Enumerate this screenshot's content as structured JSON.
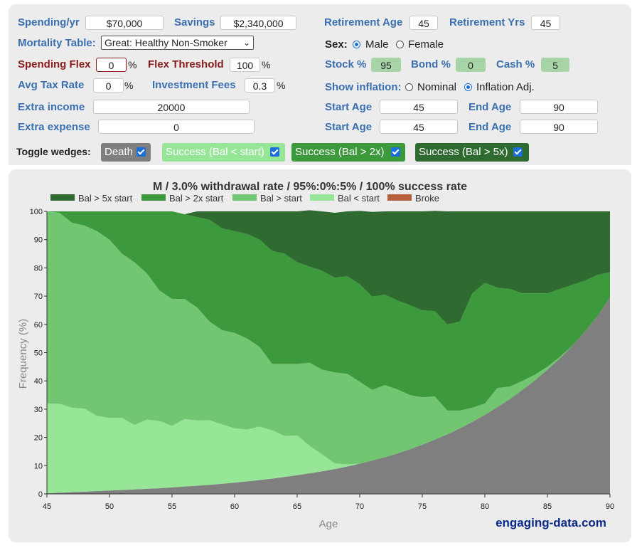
{
  "inputs": {
    "spending_label": "Spending/yr",
    "spending_value": "$70,000",
    "savings_label": "Savings",
    "savings_value": "$2,340,000",
    "retirement_age_label": "Retirement Age",
    "retirement_age_value": "45",
    "retirement_yrs_label": "Retirement Yrs",
    "retirement_yrs_value": "45",
    "mortality_label": "Mortality Table:",
    "mortality_value": "Great: Healthy Non-Smoker",
    "sex_label": "Sex:",
    "sex_male": "Male",
    "sex_female": "Female",
    "sex_selected": "Male",
    "spending_flex_label": "Spending Flex",
    "spending_flex_value": "0",
    "flex_threshold_label": "Flex Threshold",
    "flex_threshold_value": "100",
    "stock_label": "Stock %",
    "stock_value": "95",
    "bond_label": "Bond %",
    "bond_value": "0",
    "cash_label": "Cash %",
    "cash_value": "5",
    "tax_label": "Avg Tax Rate",
    "tax_value": "0",
    "fees_label": "Investment Fees",
    "fees_value": "0.3",
    "inflation_label": "Show inflation:",
    "inflation_nominal": "Nominal",
    "inflation_adj": "Inflation Adj.",
    "inflation_selected": "Inflation Adj.",
    "extra_income_label": "Extra income",
    "extra_income_value": "20000",
    "extra_expense_label": "Extra expense",
    "extra_expense_value": "0",
    "start_age_label": "Start Age",
    "end_age_label": "End Age",
    "income_start": "45",
    "income_end": "90",
    "expense_start": "45",
    "expense_end": "90",
    "percent_sign": "%"
  },
  "toggles": {
    "label": "Toggle wedges:",
    "items": [
      {
        "label": "Death",
        "bg": "#7f7f7f",
        "fg": "#ffffff",
        "checked": true
      },
      {
        "label": "Success (Bal < start)",
        "bg": "#97e597",
        "fg": "#ffffff",
        "checked": true
      },
      {
        "label": "Success (Bal > 2x)",
        "bg": "#3c9a3c",
        "fg": "#ffffff",
        "checked": true
      },
      {
        "label": "Success (Bal > 5x)",
        "bg": "#2f6a30",
        "fg": "#ffffff",
        "checked": true
      }
    ]
  },
  "chart_data": {
    "type": "area",
    "title": "M / 3.0% withdrawal rate / 95%:0%:5% / 100% success rate",
    "xlabel": "Age",
    "ylabel": "Frequency (%)",
    "xlim": [
      45,
      90
    ],
    "ylim": [
      0,
      100
    ],
    "xticks": [
      45,
      50,
      55,
      60,
      65,
      70,
      75,
      80,
      85,
      90
    ],
    "yticks": [
      0,
      10,
      20,
      30,
      40,
      50,
      60,
      70,
      80,
      90,
      100
    ],
    "x": [
      45,
      46,
      47,
      48,
      49,
      50,
      51,
      52,
      53,
      54,
      55,
      56,
      57,
      58,
      59,
      60,
      61,
      62,
      63,
      64,
      65,
      66,
      67,
      68,
      69,
      70,
      71,
      72,
      73,
      74,
      75,
      76,
      77,
      78,
      79,
      80,
      81,
      82,
      83,
      84,
      85,
      86,
      87,
      88,
      89,
      90
    ],
    "legend": [
      {
        "name": "Bal > 5x start",
        "color": "#2f6a30"
      },
      {
        "name": "Bal > 2x start",
        "color": "#3c9a3c"
      },
      {
        "name": "Bal > start",
        "color": "#72c672"
      },
      {
        "name": "Bal < start",
        "color": "#97e597"
      },
      {
        "name": "Broke",
        "color": "#b5603a"
      }
    ],
    "death_color": "#7f7f7f",
    "series": [
      {
        "name": "Death",
        "values": [
          0.2,
          0.4,
          0.6,
          0.8,
          1.0,
          1.2,
          1.4,
          1.6,
          1.8,
          2.0,
          2.3,
          2.6,
          2.9,
          3.2,
          3.6,
          4.0,
          4.4,
          4.9,
          5.4,
          6.0,
          6.6,
          7.3,
          8.0,
          8.8,
          9.7,
          10.7,
          11.8,
          13.0,
          14.3,
          15.8,
          17.4,
          19.2,
          21.1,
          23.2,
          25.5,
          28.0,
          30.7,
          33.6,
          36.8,
          40.2,
          44.0,
          48.0,
          52.5,
          57.5,
          63.0,
          69.5
        ]
      },
      {
        "name": "Bal < start",
        "values": [
          31.8,
          31.5,
          29.9,
          29.4,
          26.6,
          25.7,
          25.5,
          22.8,
          24.5,
          23.8,
          21.8,
          23.9,
          23.1,
          22.9,
          21.0,
          19.2,
          18.4,
          18.9,
          17.1,
          14.5,
          14.1,
          9.7,
          6.0,
          2.0,
          0.8,
          0.0,
          0.0,
          0.0,
          0.0,
          0.0,
          0.0,
          0.0,
          0.0,
          0.0,
          0.0,
          0.0,
          0.0,
          0.0,
          0.0,
          0.0,
          0.0,
          0.0,
          0.0,
          0.0,
          0.0,
          0.0
        ]
      },
      {
        "name": "Bal > start",
        "values": [
          68.0,
          67.6,
          65.5,
          64.8,
          65.4,
          63.1,
          58.1,
          57.6,
          51.7,
          46.2,
          44.9,
          42.5,
          40.0,
          34.9,
          33.4,
          33.8,
          32.2,
          28.2,
          23.5,
          25.5,
          25.3,
          29.4,
          30.0,
          32.2,
          32.0,
          29.0,
          25.0,
          25.5,
          22.7,
          19.2,
          16.8,
          15.3,
          8.4,
          6.3,
          5.0,
          4.0,
          6.8,
          4.4,
          3.2,
          2.0,
          1.0,
          0.5,
          0.0,
          0.0,
          0.0,
          0.0
        ]
      },
      {
        "name": "Bal > 2x start",
        "values": [
          0.0,
          0.5,
          4.0,
          5.0,
          7.0,
          10.0,
          15.0,
          18.0,
          22.0,
          28.0,
          31.0,
          30.0,
          32.0,
          36.0,
          36.0,
          36.0,
          37.0,
          38.0,
          40.0,
          39.0,
          36.0,
          34.0,
          35.0,
          33.5,
          34.5,
          34.5,
          33.0,
          32.0,
          31.5,
          31.8,
          30.8,
          30.2,
          30.5,
          31.5,
          40.5,
          42.7,
          35.5,
          34.5,
          31.0,
          28.8,
          26.0,
          24.0,
          21.5,
          18.0,
          14.5,
          9.0
        ]
      },
      {
        "name": "Bal > 5x start",
        "values": [
          0.0,
          0.0,
          0.0,
          0.0,
          0.0,
          0.0,
          0.0,
          0.0,
          0.0,
          0.0,
          0.0,
          0.0,
          2.0,
          3.0,
          6.0,
          7.0,
          8.0,
          10.0,
          14.0,
          15.0,
          18.0,
          20.0,
          21.0,
          23.0,
          23.0,
          26.0,
          30.0,
          29.5,
          31.5,
          33.2,
          35.0,
          35.5,
          40.0,
          39.0,
          29.0,
          25.3,
          27.0,
          27.5,
          29.0,
          29.0,
          29.0,
          27.5,
          26.0,
          24.5,
          22.5,
          21.5
        ]
      }
    ],
    "credit": "engaging-data.com"
  }
}
